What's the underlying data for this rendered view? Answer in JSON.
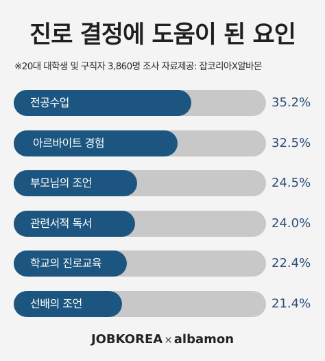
{
  "header": {
    "title": "진로 결정에 도움이 된 요인",
    "subtitle": "※20대 대학생 및 구직자 3,860명 조사   자료제공: 잡코리아X알바몬"
  },
  "chart_data": {
    "type": "bar",
    "orientation": "horizontal",
    "title": "진로 결정에 도움이 된 요인",
    "categories": [
      "전공수업",
      "아르바이트 경험",
      "부모님의 조언",
      "관련서적 독서",
      "학교의 진로교육",
      "선배의 조언"
    ],
    "values": [
      35.2,
      32.5,
      24.5,
      24.0,
      22.4,
      21.4
    ],
    "value_labels": [
      "35.2%",
      "32.5%",
      "24.5%",
      "24.0%",
      "22.4%",
      "21.4%"
    ],
    "unit": "%",
    "xlim": [
      0,
      50
    ],
    "colors": {
      "bar": "#1c5680",
      "track": "#c8c8c8",
      "value_text": "#2a4f76"
    }
  },
  "footer": {
    "brand1": "JOBKOREA",
    "separator": "×",
    "brand2": "albamon"
  }
}
